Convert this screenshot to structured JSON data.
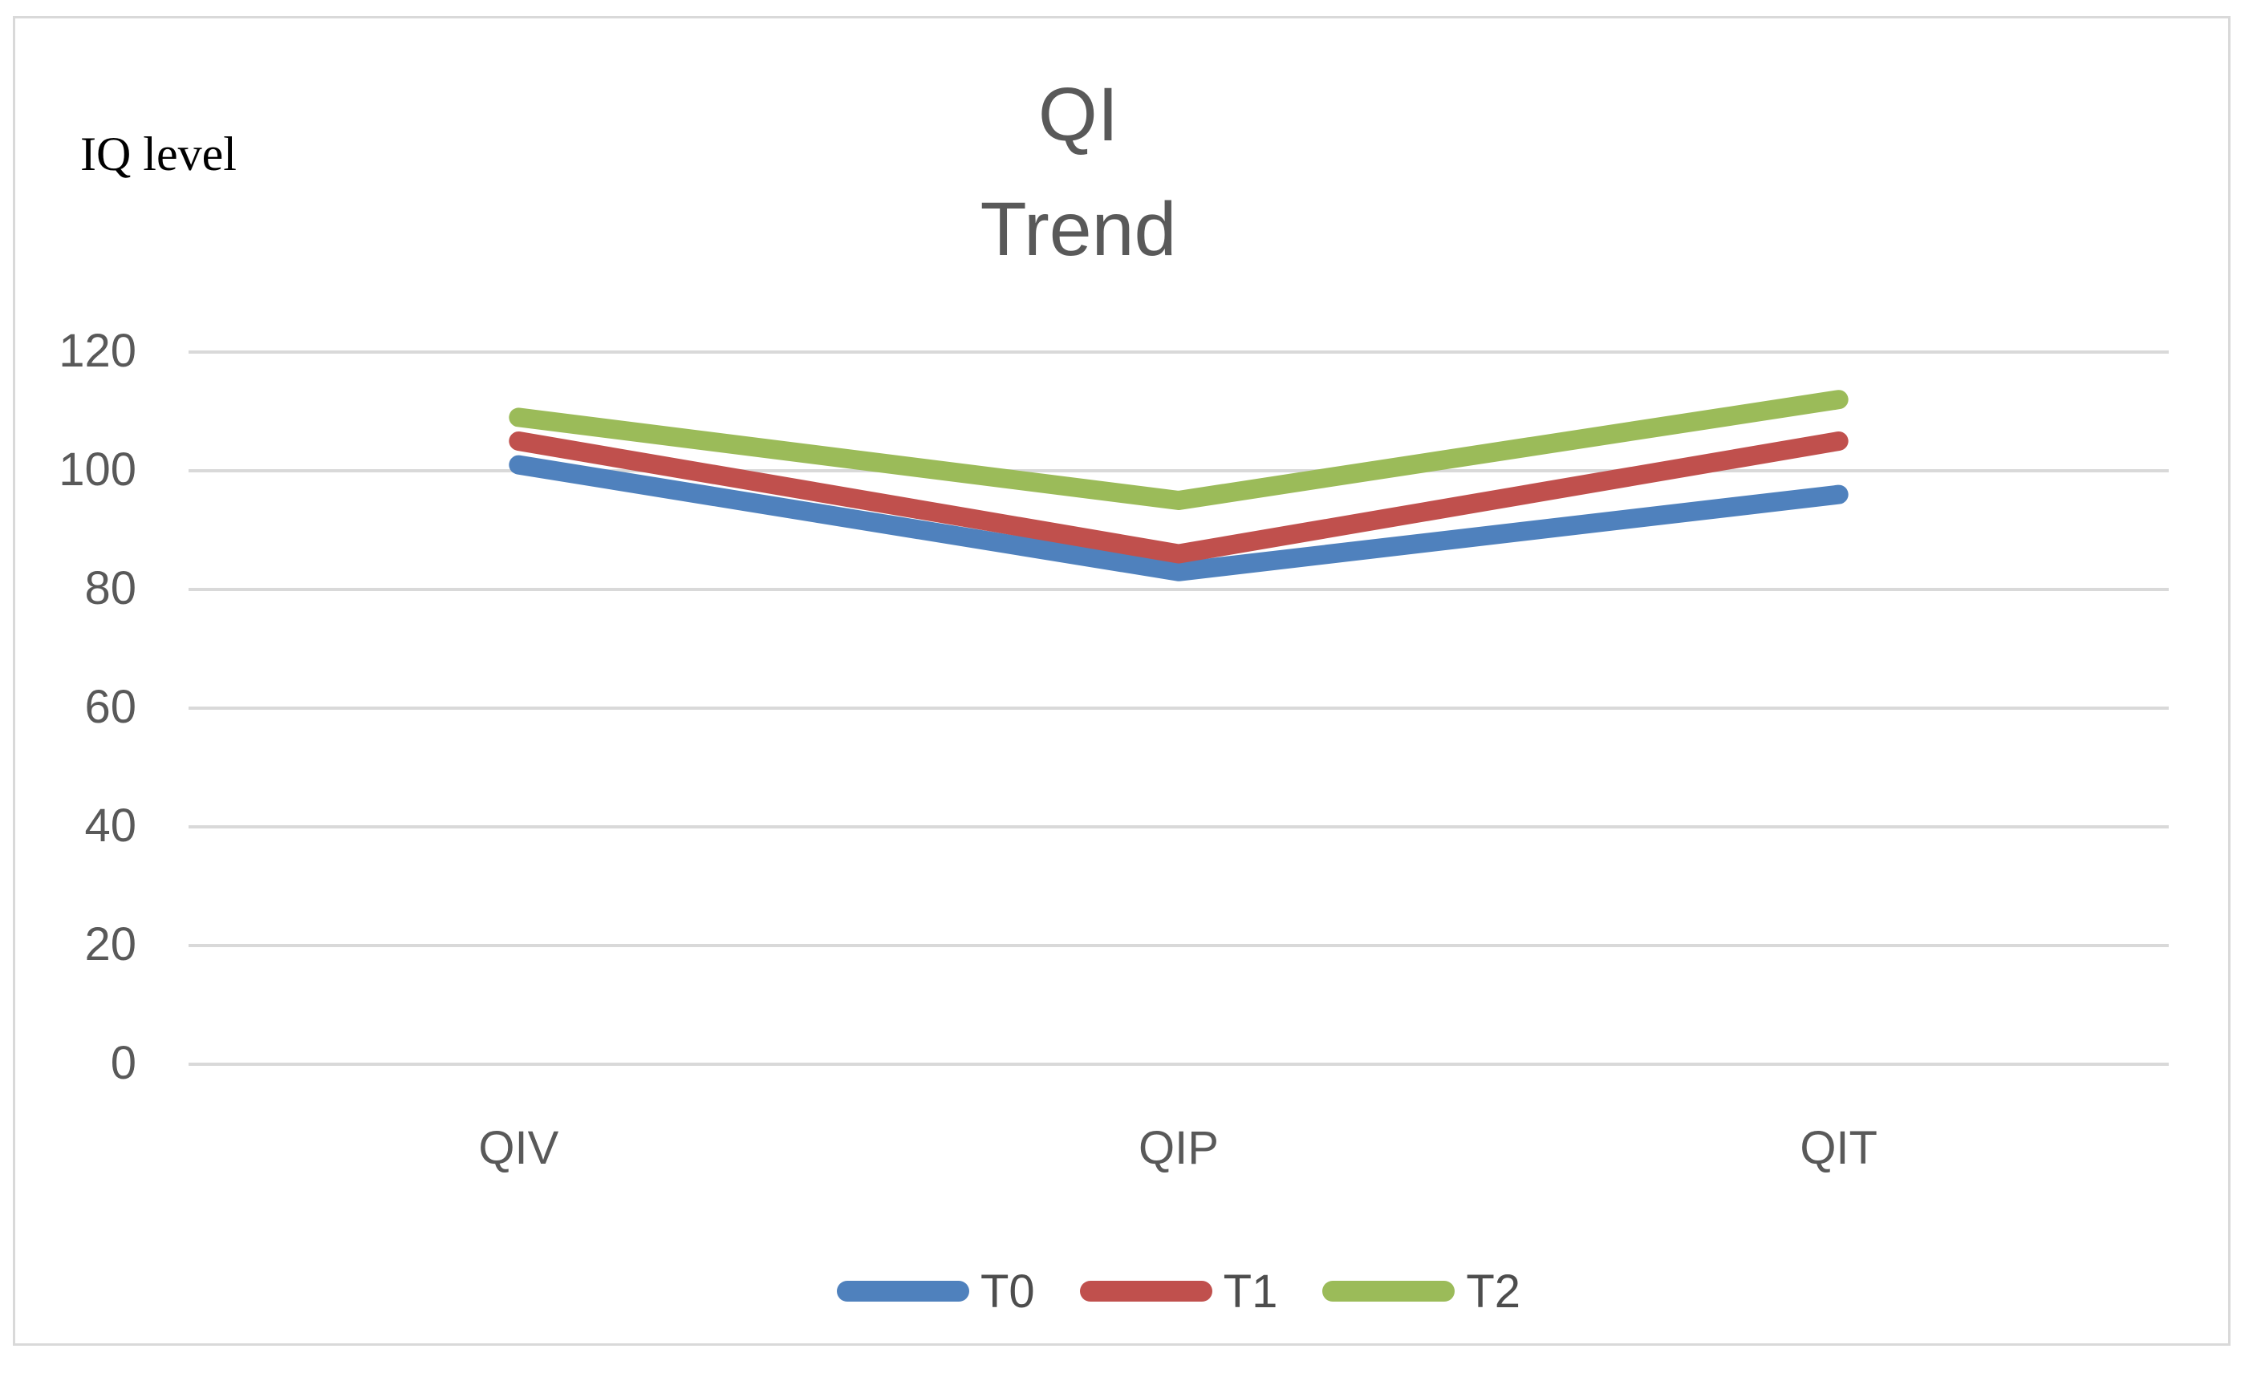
{
  "chart_data": {
    "type": "line",
    "title": "QI\nTrend",
    "ylabel": "IQ level",
    "categories": [
      "QIV",
      "QIP",
      "QIT"
    ],
    "series": [
      {
        "name": "T0",
        "color": "#4F81BD",
        "values": [
          101,
          83,
          96
        ]
      },
      {
        "name": "T1",
        "color": "#C0504D",
        "values": [
          105,
          86,
          105
        ]
      },
      {
        "name": "T2",
        "color": "#9BBB59",
        "values": [
          109,
          95,
          112
        ]
      }
    ],
    "ylim": [
      0,
      120
    ],
    "yticks": [
      0,
      20,
      40,
      60,
      80,
      100,
      120
    ],
    "grid": "horizontal",
    "grid_color": "#D9D9D9",
    "text_color": "#595959",
    "legend_text_color": "#4D4D4D",
    "axis_title_color": "#000000",
    "legend_position": "bottom"
  }
}
